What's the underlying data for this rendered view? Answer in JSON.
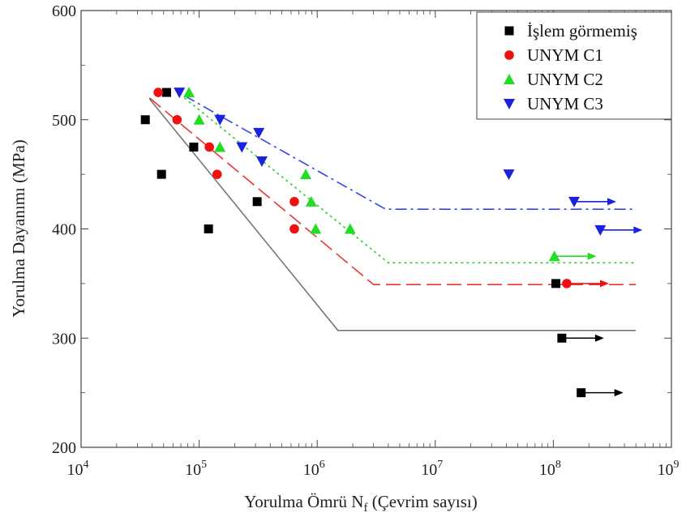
{
  "chart_data": {
    "type": "scatter",
    "xlabel": "Yorulma Ömrü N",
    "xlabel_sub": "f",
    "xlabel_tail": " (Çevrim sayısı)",
    "ylabel": "Yorulma Dayanımı (MPa)",
    "x_scale": "log",
    "xlim": [
      10000,
      1000000000
    ],
    "ylim": [
      200,
      600
    ],
    "x_ticks": [
      {
        "value": 10000,
        "base": "10",
        "exp": "4"
      },
      {
        "value": 100000,
        "base": "10",
        "exp": "5"
      },
      {
        "value": 1000000,
        "base": "10",
        "exp": "6"
      },
      {
        "value": 10000000,
        "base": "10",
        "exp": "7"
      },
      {
        "value": 100000000,
        "base": "10",
        "exp": "8"
      },
      {
        "value": 1000000000,
        "base": "10",
        "exp": "9"
      }
    ],
    "y_ticks": [
      {
        "value": 200,
        "label": "200"
      },
      {
        "value": 300,
        "label": "300"
      },
      {
        "value": 400,
        "label": "400"
      },
      {
        "value": 500,
        "label": "500"
      },
      {
        "value": 600,
        "label": "600"
      }
    ],
    "grid": false,
    "legend_position": "top-right",
    "series": [
      {
        "name": "İşlem görmemiş",
        "marker": "square",
        "color": "#000000",
        "line_style": "solid",
        "line_color": "#777777",
        "points": [
          {
            "x": 35000,
            "y": 500
          },
          {
            "x": 48000,
            "y": 450
          },
          {
            "x": 53000,
            "y": 525
          },
          {
            "x": 90000,
            "y": 475
          },
          {
            "x": 120000,
            "y": 400
          },
          {
            "x": 310000,
            "y": 425
          },
          {
            "x": 105000000,
            "y": 350,
            "runout": false
          },
          {
            "x": 118000000,
            "y": 300,
            "runout": true
          },
          {
            "x": 172000000,
            "y": 250,
            "runout": true
          }
        ],
        "fit": [
          {
            "x": 38000,
            "y": 519
          },
          {
            "x": 1500000,
            "y": 307
          },
          {
            "x": 500000000,
            "y": 307
          }
        ]
      },
      {
        "name": "UNYM C1",
        "marker": "circle",
        "color": "#ee1111",
        "line_style": "dashed",
        "line_color": "#ee3333",
        "points": [
          {
            "x": 45000,
            "y": 525
          },
          {
            "x": 65000,
            "y": 500
          },
          {
            "x": 122000,
            "y": 475
          },
          {
            "x": 142000,
            "y": 450
          },
          {
            "x": 640000,
            "y": 425
          },
          {
            "x": 640000,
            "y": 400
          },
          {
            "x": 130000000,
            "y": 350,
            "runout": true
          }
        ],
        "fit": [
          {
            "x": 38000,
            "y": 520
          },
          {
            "x": 3000000,
            "y": 349
          },
          {
            "x": 500000000,
            "y": 349
          }
        ]
      },
      {
        "name": "UNYM C2",
        "marker": "triangle-up",
        "color": "#22dd22",
        "line_style": "dotted",
        "line_color": "#33cc33",
        "points": [
          {
            "x": 82000,
            "y": 525
          },
          {
            "x": 100000,
            "y": 500
          },
          {
            "x": 150000,
            "y": 475
          },
          {
            "x": 800000,
            "y": 450
          },
          {
            "x": 890000,
            "y": 425
          },
          {
            "x": 970000,
            "y": 400
          },
          {
            "x": 1900000,
            "y": 400
          },
          {
            "x": 102000000,
            "y": 375,
            "runout": true
          }
        ],
        "fit": [
          {
            "x": 75000,
            "y": 520
          },
          {
            "x": 4000000,
            "y": 369
          },
          {
            "x": 500000000,
            "y": 369
          }
        ]
      },
      {
        "name": "UNYM C3",
        "marker": "triangle-down",
        "color": "#1a22dd",
        "line_style": "dashdot",
        "line_color": "#3344ee",
        "points": [
          {
            "x": 68000,
            "y": 525
          },
          {
            "x": 150000,
            "y": 500
          },
          {
            "x": 230000,
            "y": 475
          },
          {
            "x": 320000,
            "y": 488
          },
          {
            "x": 340000,
            "y": 462
          },
          {
            "x": 42000000,
            "y": 450
          },
          {
            "x": 150000000,
            "y": 425,
            "runout": true
          },
          {
            "x": 250000000,
            "y": 399,
            "runout": true
          }
        ],
        "fit": [
          {
            "x": 75000,
            "y": 522
          },
          {
            "x": 3800000,
            "y": 418
          },
          {
            "x": 500000000,
            "y": 418
          }
        ]
      }
    ]
  }
}
